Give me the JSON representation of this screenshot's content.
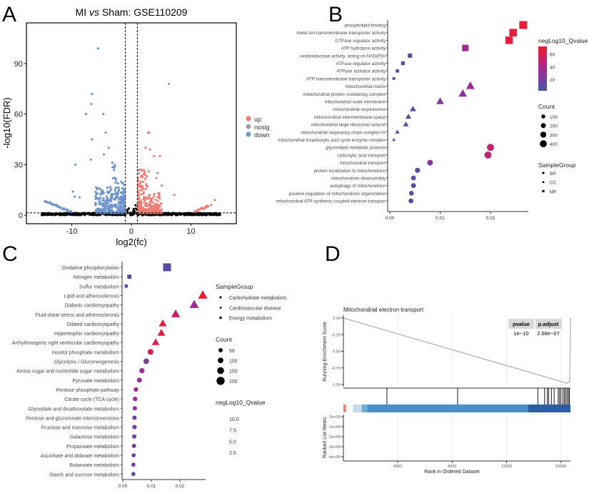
{
  "chart_data": [
    {
      "panel": "A",
      "type": "scatter",
      "title": "MI vs Sham: GSE110209",
      "title_parts": [
        "MI ",
        "vs",
        " Sham: GSE110209"
      ],
      "xlabel": "log2(fc)",
      "ylabel": "-log10(FDR)",
      "xlim": [
        -17.5,
        17.5
      ],
      "ylim": [
        -5,
        112
      ],
      "xticks": [
        -10,
        0,
        10
      ],
      "yticks": [
        0,
        30,
        60,
        90
      ],
      "fc_threshold": [
        -1,
        1
      ],
      "fdr_threshold": 1.3,
      "legend": [
        {
          "label": "up",
          "color": "#f07b72"
        },
        {
          "label": "nosig",
          "color": "#9e9e9e"
        },
        {
          "label": "down",
          "color": "#6f95cf"
        }
      ],
      "approx_counts": {
        "up": 1200,
        "down": 1500,
        "nosig": 2500
      },
      "outliers": {
        "down": [
          [
            -5.6,
            99
          ],
          [
            -6.6,
            72
          ],
          [
            -6.7,
            66
          ],
          [
            -7.6,
            60
          ],
          [
            -4.7,
            60
          ],
          [
            -4.3,
            49
          ],
          [
            -6.6,
            45
          ],
          [
            -9.4,
            30
          ],
          [
            -9.8,
            14
          ],
          [
            -9.5,
            11
          ],
          [
            -8.7,
            10.5
          ],
          [
            -14.5,
            8
          ],
          [
            -3.8,
            40
          ],
          [
            -4.6,
            36
          ],
          [
            -6.8,
            33
          ]
        ],
        "up": [
          [
            6.3,
            78
          ],
          [
            2.8,
            49
          ],
          [
            3.0,
            49
          ],
          [
            2.4,
            40
          ],
          [
            3.1,
            39
          ],
          [
            3.8,
            35
          ],
          [
            4.8,
            35
          ],
          [
            5.1,
            17.6
          ],
          [
            7.2,
            12
          ],
          [
            14,
            9
          ],
          [
            4.4,
            25
          ],
          [
            4.2,
            22
          ]
        ]
      }
    },
    {
      "panel": "B",
      "type": "scatter",
      "xlabel": "",
      "xticks": [
        "0.00",
        "0.01",
        "0.02"
      ],
      "xlim": [
        0,
        0.028
      ],
      "color_legend": {
        "title": "negLog10_Qvalue",
        "ticks": [
          20,
          40,
          60
        ],
        "range": [
          2,
          72
        ]
      },
      "size_legend": {
        "title": "Count",
        "values": [
          100,
          200,
          300,
          400
        ]
      },
      "shape_legend": {
        "title": "SampleGroup",
        "entries": [
          {
            "label": "BP",
            "shape": "circle"
          },
          {
            "label": "CC",
            "shape": "triangle"
          },
          {
            "label": "MF",
            "shape": "square"
          }
        ]
      },
      "rows": [
        {
          "term": "phospholipid binding",
          "x": 0.0265,
          "q": 70,
          "count": 400,
          "group": "MF"
        },
        {
          "term": "metal ion transmembrane transporter activity",
          "x": 0.0245,
          "q": 68,
          "count": 370,
          "group": "MF"
        },
        {
          "term": "GTPase regulator activity",
          "x": 0.0237,
          "q": 66,
          "count": 350,
          "group": "MF"
        },
        {
          "term": "ATP hydrolysis activity",
          "x": 0.015,
          "q": 38,
          "count": 240,
          "group": "MF"
        },
        {
          "term": "oxidoreductase activity, acting on NAD(P)H",
          "x": 0.004,
          "q": 8,
          "count": 70,
          "group": "MF"
        },
        {
          "term": "ATPase regulator activity",
          "x": 0.0026,
          "q": 6,
          "count": 45,
          "group": "MF"
        },
        {
          "term": "ATPase activator activity",
          "x": 0.0015,
          "q": 5,
          "count": 28,
          "group": "MF"
        },
        {
          "term": "ATP transmembrane transporter activity",
          "x": 0.0008,
          "q": 4,
          "count": 12,
          "group": "MF"
        },
        {
          "term": "mitochondrial matrix",
          "x": 0.016,
          "q": 36,
          "count": 320,
          "group": "CC"
        },
        {
          "term": "mitochondrial protein–containing complex",
          "x": 0.0145,
          "q": 30,
          "count": 300,
          "group": "CC"
        },
        {
          "term": "mitochondrial outer membrane",
          "x": 0.01,
          "q": 25,
          "count": 230,
          "group": "CC"
        },
        {
          "term": "mitochondrial respirasome",
          "x": 0.0046,
          "q": 8,
          "count": 130,
          "group": "CC"
        },
        {
          "term": "mitochondrial intermembrane space",
          "x": 0.0037,
          "q": 7,
          "count": 105,
          "group": "CC"
        },
        {
          "term": "mitochondrial large ribosomal subunit",
          "x": 0.0032,
          "q": 6,
          "count": 95,
          "group": "CC"
        },
        {
          "term": "mitochondrial respiratory chain complex IV",
          "x": 0.0015,
          "q": 4,
          "count": 45,
          "group": "CC"
        },
        {
          "term": "mitochondrial tricarboxylic acid cycle enzyme complex",
          "x": 0.0008,
          "q": 3,
          "count": 15,
          "group": "CC"
        },
        {
          "term": "glycerolipid metabolic process",
          "x": 0.02,
          "q": 50,
          "count": 310,
          "group": "BP"
        },
        {
          "term": "carboxylic acid transport",
          "x": 0.0195,
          "q": 48,
          "count": 300,
          "group": "BP"
        },
        {
          "term": "mitochondrial transport",
          "x": 0.008,
          "q": 25,
          "count": 170,
          "group": "BP"
        },
        {
          "term": "protein localization to mitochondrion",
          "x": 0.0055,
          "q": 12,
          "count": 125,
          "group": "BP"
        },
        {
          "term": "mitochondrion disassembly",
          "x": 0.0047,
          "q": 10,
          "count": 105,
          "group": "BP"
        },
        {
          "term": "autophagy of mitochondrion",
          "x": 0.0047,
          "q": 10,
          "count": 105,
          "group": "BP"
        },
        {
          "term": "positive regulation of mitochondrion organization",
          "x": 0.0043,
          "q": 9,
          "count": 100,
          "group": "BP"
        },
        {
          "term": "mitochondrial ATP synthesis coupled electron transport",
          "x": 0.0042,
          "q": 8,
          "count": 100,
          "group": "BP"
        }
      ]
    },
    {
      "panel": "C",
      "type": "scatter",
      "xticks": [
        "0.00",
        "0.01",
        "0.02"
      ],
      "xlim": [
        0,
        0.029
      ],
      "shape_legend": {
        "title": "SampleGroup",
        "entries": [
          {
            "label": "Carbohydrate metabolism",
            "shape": "circle"
          },
          {
            "label": "Cardiovascular disease",
            "shape": "triangle"
          },
          {
            "label": "Energy metabolism",
            "shape": "square"
          }
        ]
      },
      "size_legend": {
        "title": "Count",
        "values": [
          50,
          100,
          150,
          200
        ]
      },
      "color_legend": {
        "title": "negLog10_Qvalue",
        "ticks": [
          "10.0",
          "7.5",
          "5.0",
          "2.5"
        ],
        "range": [
          2,
          11
        ]
      },
      "rows": [
        {
          "term": "Oxidative phosphorylation",
          "x": 0.0155,
          "q": 3,
          "count": 200,
          "group": "Energy metabolism"
        },
        {
          "term": "Nitrogen metabolism",
          "x": 0.0023,
          "q": 3,
          "count": 35,
          "group": "Energy metabolism"
        },
        {
          "term": "Sulfur metabolism",
          "x": 0.0012,
          "q": 2.5,
          "count": 15,
          "group": "Energy metabolism"
        },
        {
          "term": "Lipid and atherosclerosis",
          "x": 0.028,
          "q": 11,
          "count": 200,
          "group": "Cardiovascular disease"
        },
        {
          "term": "Diabetic cardiomyopathy",
          "x": 0.025,
          "q": 6,
          "count": 190,
          "group": "Cardiovascular disease"
        },
        {
          "term": "Fluid shear stress and atherosclerosis",
          "x": 0.0185,
          "q": 8.5,
          "count": 170,
          "group": "Cardiovascular disease"
        },
        {
          "term": "Dilated cardiomyopathy",
          "x": 0.014,
          "q": 10,
          "count": 130,
          "group": "Cardiovascular disease"
        },
        {
          "term": "Hypertrophic cardiomyopathy",
          "x": 0.0135,
          "q": 10,
          "count": 125,
          "group": "Cardiovascular disease"
        },
        {
          "term": "Arrhythmogenic right ventricular cardiomyopathy",
          "x": 0.0115,
          "q": 10,
          "count": 115,
          "group": "Cardiovascular disease"
        },
        {
          "term": "Inositol phosphate metabolism",
          "x": 0.0097,
          "q": 9.5,
          "count": 90,
          "group": "Carbohydrate metabolism"
        },
        {
          "term": "Glycolysis / Gluconeogenesis",
          "x": 0.0082,
          "q": 4,
          "count": 85,
          "group": "Carbohydrate metabolism"
        },
        {
          "term": "Amino sugar and nucleotide sugar metabolism",
          "x": 0.0067,
          "q": 6,
          "count": 70,
          "group": "Carbohydrate metabolism"
        },
        {
          "term": "Pyruvate metabolism",
          "x": 0.0058,
          "q": 6,
          "count": 60,
          "group": "Carbohydrate metabolism"
        },
        {
          "term": "Pentose phosphate pathway",
          "x": 0.0046,
          "q": 6,
          "count": 45,
          "group": "Carbohydrate metabolism"
        },
        {
          "term": "Citrate cycle (TCA cycle)",
          "x": 0.0043,
          "q": 6,
          "count": 45,
          "group": "Carbohydrate metabolism"
        },
        {
          "term": "Glyoxylate and dicarboxylate metabolism",
          "x": 0.0042,
          "q": 5.5,
          "count": 42,
          "group": "Carbohydrate metabolism"
        },
        {
          "term": "Pentose and glucuronate interconversions",
          "x": 0.0041,
          "q": 4,
          "count": 42,
          "group": "Carbohydrate metabolism"
        },
        {
          "term": "Fructose and mannose metabolism",
          "x": 0.0041,
          "q": 4,
          "count": 42,
          "group": "Carbohydrate metabolism"
        },
        {
          "term": "Galactose metabolism",
          "x": 0.004,
          "q": 4,
          "count": 40,
          "group": "Carbohydrate metabolism"
        },
        {
          "term": "Propanoate metabolism",
          "x": 0.0039,
          "q": 4.5,
          "count": 38,
          "group": "Carbohydrate metabolism"
        },
        {
          "term": "Ascorbate and aldarate metabolism",
          "x": 0.0038,
          "q": 4,
          "count": 36,
          "group": "Carbohydrate metabolism"
        },
        {
          "term": "Butanoate metabolism",
          "x": 0.0037,
          "q": 5,
          "count": 35,
          "group": "Carbohydrate metabolism"
        },
        {
          "term": "Starch and sucrose metabolism",
          "x": 0.0037,
          "q": 3,
          "count": 35,
          "group": "Carbohydrate metabolism"
        }
      ]
    },
    {
      "panel": "D",
      "type": "line",
      "title": "Mitochondrial electron transport",
      "ylabel": "Running Enrichment Score",
      "ylabel2": "Ranked List Metric",
      "xlabel": "Rank in Ordered Dataset",
      "xlim": [
        0,
        16700
      ],
      "xticks": [
        4000,
        8000,
        12000,
        16000
      ],
      "es_ticks": [
        "0.00",
        "-0.25",
        "-0.50",
        "-0.75",
        "-1.00"
      ],
      "metric_ticks": [
        "0e+00",
        "-1e+05",
        "-2e+05",
        "-3e+05",
        "-4e+05"
      ],
      "es_curve": [
        [
          0,
          0
        ],
        [
          16450,
          -0.98
        ],
        [
          16650,
          -0.96
        ],
        [
          16700,
          0
        ]
      ],
      "hits": [
        3200,
        8400,
        14300,
        14800,
        15000,
        15100,
        15300,
        15500,
        15800,
        15900,
        16000,
        16150,
        16250,
        16350,
        16450,
        16550,
        16620
      ],
      "strip": [
        [
          0,
          200,
          "#f4826b"
        ],
        [
          200,
          700,
          "#ffffff"
        ],
        [
          700,
          1350,
          "#c7dcef"
        ],
        [
          1350,
          1750,
          "#6aaed6"
        ],
        [
          1750,
          13600,
          "#4a8fca"
        ],
        [
          13600,
          16700,
          "#2a5ea6"
        ]
      ],
      "table": {
        "headers": [
          "pvalue",
          "p.adjust"
        ],
        "values": [
          "1e−10",
          "2.68e−07"
        ]
      }
    }
  ],
  "labels": {
    "A": "A",
    "B": "B",
    "C": "C",
    "D": "D"
  }
}
